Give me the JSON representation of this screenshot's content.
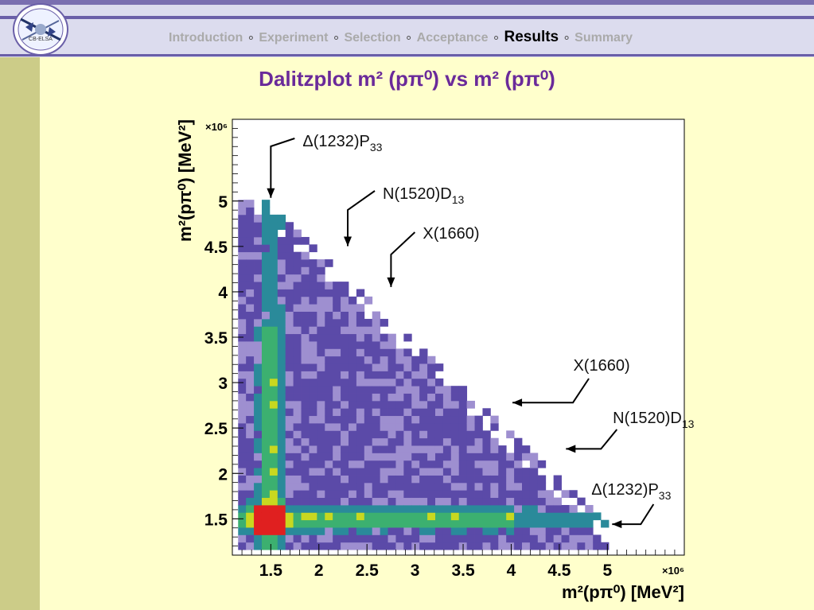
{
  "nav": {
    "items": [
      {
        "label": "Introduction",
        "active": false
      },
      {
        "label": "Experiment",
        "active": false
      },
      {
        "label": "Selection",
        "active": false
      },
      {
        "label": "Acceptance",
        "active": false
      },
      {
        "label": "Results",
        "active": true
      },
      {
        "label": "Summary",
        "active": false
      }
    ],
    "separator": "∘"
  },
  "logo": {
    "text": "CB-ELSA"
  },
  "slide": {
    "title": "Dalitzplot m² (pπ⁰)  vs  m² (pπ⁰)"
  },
  "chart_data": {
    "type": "heatmap",
    "xlabel": "m²(pπ⁰) [MeV²]",
    "ylabel": "m²(pπ⁰) [MeV²]",
    "x_multiplier": "×10⁶",
    "y_multiplier": "×10⁶",
    "xlim": [
      1.1,
      5.8
    ],
    "ylim": [
      1.1,
      5.9
    ],
    "x_ticks": [
      1.5,
      2,
      2.5,
      3,
      3.5,
      4,
      4.5,
      5
    ],
    "y_ticks": [
      1.5,
      2,
      2.5,
      3,
      3.5,
      4,
      4.5,
      5
    ],
    "x_tick_labels": [
      "1.5",
      "2",
      "2.5",
      "3",
      "3.5",
      "4",
      "4.5",
      "5"
    ],
    "y_tick_labels": [
      "1.5",
      "2",
      "2.5",
      "3",
      "3.5",
      "4",
      "4.5",
      "5"
    ],
    "colors": {
      "low": "#5b4aa8",
      "light": "#9e8fd0",
      "mid": "#2a8a9a",
      "green": "#3cb070",
      "yellow": "#c8d820",
      "orange": "#f07020",
      "red": "#e02020"
    },
    "annotations": [
      {
        "text": "Δ(1232)P",
        "sub": "33",
        "x": 1.5,
        "y": 5.0
      },
      {
        "text": "N(1520)D",
        "sub": "13",
        "x": 2.3,
        "y": 4.45
      },
      {
        "text": "X(1660)",
        "sub": "",
        "x": 2.75,
        "y": 4.0
      },
      {
        "text": "X(1660)",
        "sub": "",
        "x": 3.98,
        "y": 2.78
      },
      {
        "text": "N(1520)D",
        "sub": "13",
        "x": 4.52,
        "y": 2.27
      },
      {
        "text": "Δ(1232)P",
        "sub": "33",
        "x": 5.0,
        "y": 1.44
      }
    ]
  }
}
